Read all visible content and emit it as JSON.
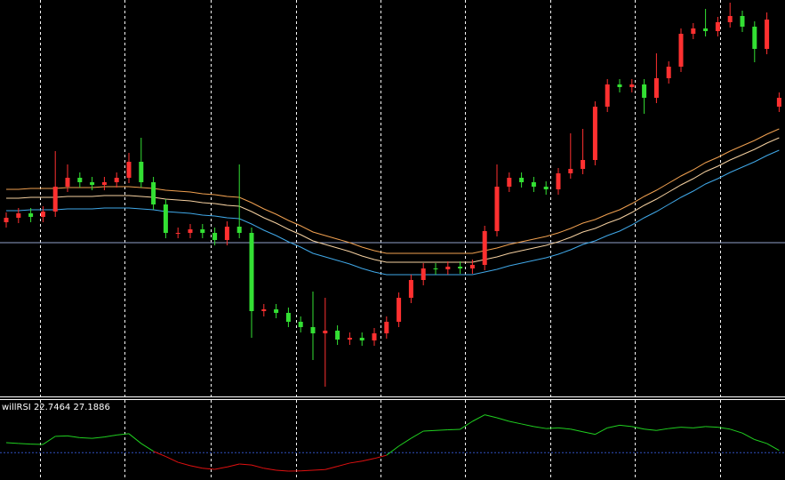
{
  "chart_data": [
    {
      "type": "candlestick",
      "open": [
        200,
        205,
        210,
        206,
        212,
        240,
        250,
        245,
        242,
        245,
        250,
        268,
        245,
        220,
        188,
        188,
        192,
        188,
        180,
        195,
        188,
        100,
        102,
        98,
        88,
        82,
        75,
        78,
        68,
        70,
        67,
        75,
        88,
        115,
        135,
        148,
        147,
        150,
        148,
        152,
        190,
        240,
        250,
        245,
        240,
        237,
        255,
        260,
        270,
        330,
        355,
        352,
        355,
        340,
        362,
        375,
        412,
        418,
        415,
        425,
        432,
        420,
        395,
        330
      ],
      "high": [
        211,
        216,
        216,
        218,
        280,
        265,
        256,
        251,
        251,
        256,
        278,
        295,
        251,
        226,
        194,
        198,
        198,
        194,
        201,
        265,
        194,
        108,
        108,
        104,
        94,
        122,
        115,
        84,
        76,
        76,
        81,
        94,
        121,
        141,
        154,
        154,
        156,
        156,
        158,
        196,
        265,
        256,
        256,
        251,
        246,
        261,
        300,
        305,
        336,
        361,
        361,
        361,
        361,
        390,
        381,
        418,
        424,
        440,
        431,
        447,
        438,
        426,
        436,
        346
      ],
      "low": [
        194,
        199,
        200,
        200,
        206,
        234,
        239,
        236,
        236,
        239,
        244,
        239,
        214,
        182,
        182,
        182,
        182,
        174,
        174,
        182,
        70,
        94,
        92,
        82,
        76,
        45,
        15,
        62,
        62,
        61,
        61,
        69,
        82,
        109,
        129,
        141,
        141,
        142,
        142,
        146,
        184,
        234,
        239,
        234,
        231,
        231,
        249,
        254,
        264,
        324,
        346,
        346,
        322,
        334,
        356,
        369,
        406,
        409,
        409,
        419,
        414,
        380,
        389,
        324
      ],
      "close": [
        205,
        210,
        206,
        212,
        240,
        250,
        245,
        242,
        245,
        250,
        268,
        245,
        220,
        188,
        188,
        192,
        188,
        180,
        195,
        188,
        100,
        102,
        98,
        88,
        82,
        75,
        78,
        68,
        70,
        67,
        75,
        88,
        115,
        135,
        148,
        147,
        150,
        148,
        152,
        190,
        240,
        250,
        245,
        240,
        237,
        255,
        260,
        270,
        330,
        355,
        352,
        355,
        340,
        362,
        375,
        412,
        418,
        415,
        425,
        432,
        420,
        395,
        428,
        340
      ],
      "up_color": "#ff3030",
      "down_color": "#33e033",
      "series": [
        {
          "color": "#f0a050",
          "values": [
            237,
            237,
            238,
            238,
            238,
            239,
            239,
            239,
            240,
            240,
            240,
            239,
            238,
            236,
            235,
            234,
            232,
            231,
            229,
            228,
            222,
            215,
            209,
            202,
            196,
            189,
            185,
            181,
            177,
            172,
            168,
            165,
            165,
            165,
            165,
            165,
            165,
            165,
            165,
            168,
            171,
            175,
            178,
            181,
            184,
            188,
            193,
            199,
            203,
            209,
            214,
            221,
            229,
            236,
            244,
            252,
            259,
            267,
            273,
            280,
            286,
            292,
            299,
            305
          ]
        },
        {
          "color": "#f5d0a0",
          "values": [
            227,
            227,
            228,
            228,
            228,
            229,
            229,
            229,
            230,
            230,
            230,
            229,
            228,
            226,
            225,
            224,
            222,
            221,
            219,
            218,
            212,
            205,
            199,
            192,
            186,
            179,
            175,
            171,
            167,
            162,
            158,
            155,
            155,
            155,
            155,
            155,
            155,
            155,
            155,
            158,
            161,
            165,
            168,
            171,
            174,
            178,
            183,
            189,
            193,
            199,
            204,
            211,
            219,
            226,
            234,
            242,
            249,
            257,
            263,
            270,
            276,
            282,
            289,
            295
          ]
        },
        {
          "color": "#40a8e8",
          "values": [
            213,
            213,
            214,
            214,
            214,
            215,
            215,
            215,
            216,
            216,
            216,
            215,
            214,
            212,
            211,
            210,
            208,
            207,
            205,
            204,
            198,
            191,
            185,
            178,
            172,
            165,
            161,
            157,
            153,
            148,
            144,
            141,
            141,
            141,
            141,
            141,
            141,
            141,
            141,
            144,
            147,
            151,
            154,
            157,
            160,
            164,
            169,
            175,
            179,
            185,
            190,
            197,
            205,
            212,
            220,
            228,
            235,
            243,
            249,
            256,
            262,
            268,
            275,
            281
          ]
        }
      ],
      "hline": 177,
      "hline_color": "#8fa0c8",
      "ylim": [
        0,
        450
      ]
    },
    {
      "type": "line",
      "label": "willRSI 22.7464 27.1886",
      "values": [
        28.6,
        28,
        27.5,
        27.3,
        33.5,
        33.8,
        32.5,
        32,
        33,
        34.5,
        35.5,
        28,
        22,
        18,
        13.6,
        11,
        9,
        8.2,
        10,
        12.3,
        11.5,
        9,
        7.5,
        6.8,
        7,
        7.5,
        8,
        10.5,
        13,
        14.5,
        16.5,
        19,
        26,
        32,
        37.5,
        38,
        38.5,
        38.9,
        45,
        50,
        47.7,
        45,
        43,
        41,
        39.5,
        40,
        39,
        37,
        35,
        40,
        42,
        41,
        39,
        38,
        39.5,
        40.5,
        40,
        41,
        40.5,
        39,
        36,
        31,
        28,
        22.7
      ],
      "level": 21,
      "level_color": "#3050c0",
      "above_color": "#20d020",
      "below_color": "#e01010",
      "ylim": [
        0,
        60
      ]
    }
  ]
}
